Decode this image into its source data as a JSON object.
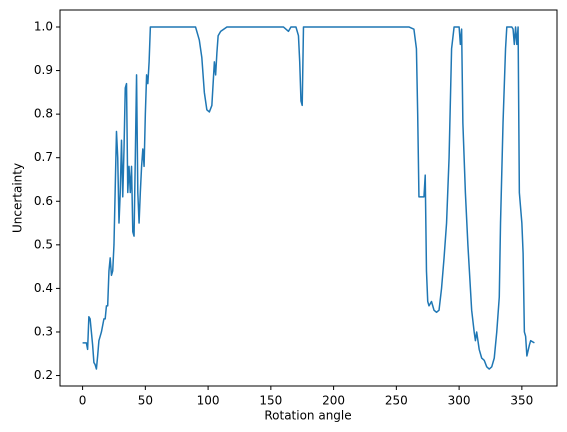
{
  "chart_data": {
    "type": "line",
    "xlabel": "Rotation angle",
    "ylabel": "Uncertainty",
    "xlim": [
      -18,
      378
    ],
    "ylim": [
      0.176,
      1.039
    ],
    "xticks": [
      0,
      50,
      100,
      150,
      200,
      250,
      300,
      350
    ],
    "yticks": [
      0.2,
      0.3,
      0.4,
      0.5,
      0.6,
      0.7,
      0.8,
      0.9,
      {
        "value": 1,
        "label": "1.0"
      }
    ],
    "grid": false,
    "x": [
      0,
      3,
      4,
      5,
      6,
      7,
      8,
      9,
      10,
      11,
      12,
      13,
      15,
      17,
      18,
      19,
      20,
      21,
      22,
      23,
      24,
      25,
      26,
      27,
      28,
      29,
      30,
      31,
      32,
      33,
      34,
      35,
      36,
      37,
      38,
      39,
      40,
      41,
      42,
      43,
      44,
      45,
      46,
      47,
      48,
      49,
      50,
      51,
      52,
      53,
      54,
      60,
      90,
      92,
      93,
      95,
      97,
      99,
      101,
      103,
      105,
      106,
      107,
      108,
      110,
      115,
      160,
      164,
      166,
      170,
      172,
      173,
      174,
      175,
      176,
      180,
      260,
      264,
      266,
      267,
      268,
      272,
      273,
      274,
      275,
      276,
      278,
      280,
      282,
      284,
      286,
      288,
      290,
      292,
      294,
      296,
      300,
      301,
      302,
      303,
      305,
      307,
      308,
      310,
      312,
      313,
      314,
      316,
      318,
      320,
      322,
      324,
      326,
      328,
      330,
      332,
      333,
      335,
      337,
      338,
      342,
      343,
      344,
      345,
      346,
      347,
      348,
      350,
      351,
      352,
      353,
      354,
      356,
      357,
      360
    ],
    "series": [
      {
        "color": "#1f77b4",
        "values": [
          0.275,
          0.275,
          0.26,
          0.335,
          0.33,
          0.3,
          0.27,
          0.23,
          0.225,
          0.215,
          0.245,
          0.28,
          0.3,
          0.33,
          0.33,
          0.36,
          0.36,
          0.44,
          0.47,
          0.43,
          0.44,
          0.5,
          0.63,
          0.76,
          0.7,
          0.55,
          0.62,
          0.74,
          0.61,
          0.72,
          0.86,
          0.87,
          0.62,
          0.68,
          0.62,
          0.68,
          0.53,
          0.52,
          0.7,
          0.89,
          0.62,
          0.55,
          0.62,
          0.68,
          0.72,
          0.68,
          0.8,
          0.89,
          0.87,
          0.92,
          1,
          1,
          1,
          0.98,
          0.97,
          0.93,
          0.85,
          0.81,
          0.805,
          0.82,
          0.92,
          0.89,
          0.94,
          0.98,
          0.99,
          1,
          1,
          0.99,
          1,
          1,
          0.98,
          0.92,
          0.83,
          0.82,
          1,
          1,
          1,
          0.995,
          0.95,
          0.8,
          0.61,
          0.61,
          0.66,
          0.44,
          0.37,
          0.36,
          0.37,
          0.35,
          0.345,
          0.35,
          0.4,
          0.47,
          0.55,
          0.7,
          0.95,
          1,
          1,
          0.96,
          0.995,
          0.78,
          0.62,
          0.5,
          0.45,
          0.35,
          0.3,
          0.28,
          0.3,
          0.26,
          0.24,
          0.235,
          0.22,
          0.215,
          0.22,
          0.24,
          0.3,
          0.38,
          0.55,
          0.78,
          0.95,
          1,
          1,
          0.995,
          0.96,
          1,
          0.96,
          1,
          0.62,
          0.55,
          0.48,
          0.3,
          0.29,
          0.245,
          0.27,
          0.28,
          0.275
        ]
      }
    ]
  }
}
